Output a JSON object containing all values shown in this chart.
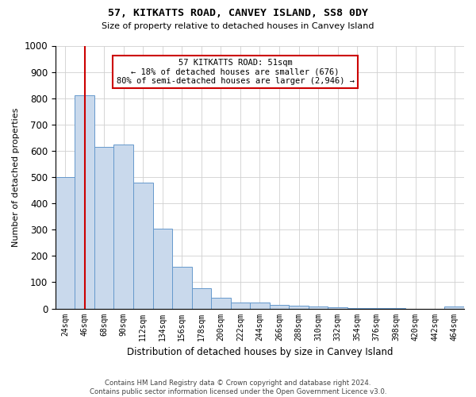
{
  "title1": "57, KITKATTS ROAD, CANVEY ISLAND, SS8 0DY",
  "title2": "Size of property relative to detached houses in Canvey Island",
  "xlabel": "Distribution of detached houses by size in Canvey Island",
  "ylabel": "Number of detached properties",
  "annotation_title": "57 KITKATTS ROAD: 51sqm",
  "annotation_line1": "← 18% of detached houses are smaller (676)",
  "annotation_line2": "80% of semi-detached houses are larger (2,946) →",
  "footer1": "Contains HM Land Registry data © Crown copyright and database right 2024.",
  "footer2": "Contains public sector information licensed under the Open Government Licence v3.0.",
  "bar_color": "#c9d9ec",
  "bar_edge_color": "#6699cc",
  "vline_color": "#cc0000",
  "vline_x": 1.0,
  "categories": [
    "24sqm",
    "46sqm",
    "68sqm",
    "90sqm",
    "112sqm",
    "134sqm",
    "156sqm",
    "178sqm",
    "200sqm",
    "222sqm",
    "244sqm",
    "266sqm",
    "288sqm",
    "310sqm",
    "332sqm",
    "354sqm",
    "376sqm",
    "398sqm",
    "420sqm",
    "442sqm",
    "464sqm"
  ],
  "values": [
    500,
    810,
    615,
    625,
    480,
    305,
    160,
    78,
    42,
    22,
    22,
    15,
    10,
    8,
    5,
    3,
    3,
    2,
    0,
    0,
    8
  ],
  "ylim": [
    0,
    1000
  ],
  "yticks": [
    0,
    100,
    200,
    300,
    400,
    500,
    600,
    700,
    800,
    900,
    1000
  ],
  "background_color": "#ffffff",
  "grid_color": "#d0d0d0"
}
